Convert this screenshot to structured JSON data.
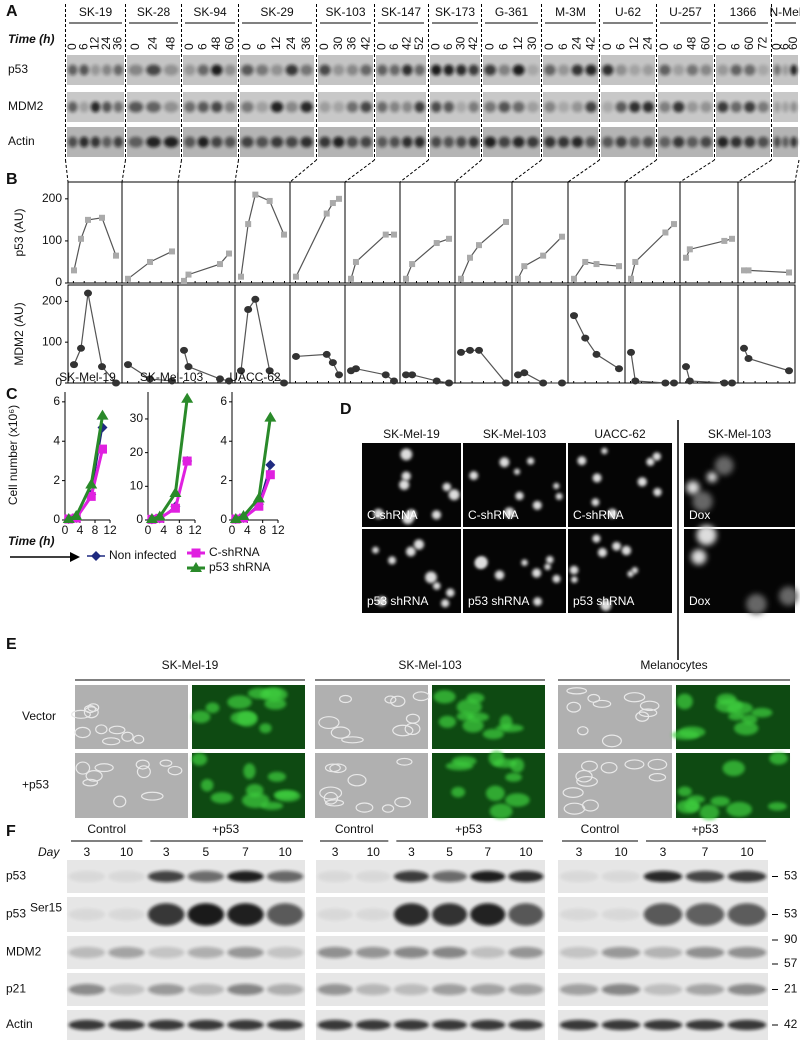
{
  "panel_A": {
    "label": "A",
    "time_label": "Time (h)",
    "rows": [
      "p53",
      "MDM2",
      "Actin"
    ],
    "lines": [
      {
        "name": "SK-19",
        "times": [
          0,
          6,
          12,
          24,
          36
        ]
      },
      {
        "name": "SK-28",
        "times": [
          0,
          24,
          48
        ]
      },
      {
        "name": "SK-94",
        "times": [
          0,
          6,
          48,
          60
        ]
      },
      {
        "name": "SK-29",
        "times": [
          0,
          6,
          12,
          24,
          36
        ]
      },
      {
        "name": "SK-103",
        "times": [
          0,
          30,
          36,
          42
        ]
      },
      {
        "name": "SK-147",
        "times": [
          0,
          6,
          42,
          52
        ]
      },
      {
        "name": "SK-173",
        "times": [
          0,
          6,
          30,
          42
        ]
      },
      {
        "name": "G-361",
        "times": [
          0,
          6,
          12,
          30
        ]
      },
      {
        "name": "M-3M",
        "times": [
          0,
          6,
          24,
          42
        ]
      },
      {
        "name": "U-62",
        "times": [
          0,
          6,
          12,
          24
        ]
      },
      {
        "name": "U-257",
        "times": [
          0,
          6,
          48,
          60
        ]
      },
      {
        "name": "1366",
        "times": [
          0,
          6,
          60,
          72
        ]
      },
      {
        "name": "N-Mel",
        "times": [
          0,
          6,
          60
        ]
      }
    ]
  },
  "panel_B": {
    "label": "B",
    "charts": [
      {
        "type": "line",
        "y_label": "p53 (AU)",
        "ylim": [
          0,
          240
        ],
        "yticks": [
          0,
          100,
          200
        ],
        "color": "#aaaaaa",
        "marker": "square",
        "series": [
          [
            30,
            105,
            150,
            155,
            65
          ],
          [
            10,
            50,
            75
          ],
          [
            5,
            20,
            45,
            70
          ],
          [
            15,
            140,
            210,
            195,
            115
          ],
          [
            15,
            165,
            190,
            200
          ],
          [
            10,
            50,
            115,
            115
          ],
          [
            10,
            45,
            95,
            105
          ],
          [
            10,
            60,
            90,
            145
          ],
          [
            10,
            40,
            65,
            110
          ],
          [
            10,
            50,
            45,
            40
          ],
          [
            10,
            50,
            120,
            140
          ],
          [
            60,
            80,
            100,
            105
          ],
          [
            30,
            30,
            25
          ]
        ]
      },
      {
        "type": "line",
        "y_label": "MDM2 (AU)",
        "ylim": [
          0,
          240
        ],
        "yticks": [
          0,
          100,
          200
        ],
        "color": "#333333",
        "marker": "circle",
        "series": [
          [
            45,
            85,
            220,
            40,
            0
          ],
          [
            45,
            10,
            5
          ],
          [
            80,
            40,
            10,
            5
          ],
          [
            30,
            180,
            205,
            30,
            0
          ],
          [
            65,
            70,
            50,
            20
          ],
          [
            30,
            35,
            20,
            5
          ],
          [
            20,
            20,
            5,
            0
          ],
          [
            75,
            80,
            80,
            0
          ],
          [
            20,
            25,
            0,
            0
          ],
          [
            165,
            110,
            70,
            35
          ],
          [
            75,
            5,
            0,
            0
          ],
          [
            40,
            5,
            0,
            0
          ],
          [
            85,
            60,
            30
          ]
        ]
      }
    ]
  },
  "panel_C": {
    "label": "C",
    "y_label": "Cell number (x10⁶)",
    "x_label": "Time (h)",
    "x": [
      1,
      3,
      7,
      10
    ],
    "xlim": [
      0,
      12
    ],
    "xticks": [
      0,
      4,
      8,
      12
    ],
    "legend": [
      {
        "name": "Non infected",
        "color": "#1f2a80",
        "marker": "diamond"
      },
      {
        "name": "C-shRNA",
        "color": "#e020e0",
        "marker": "square"
      },
      {
        "name": "p53 shRNA",
        "color": "#2a8a2a",
        "marker": "triangle"
      }
    ],
    "charts": [
      {
        "type": "line",
        "title": "SK-Mel-19",
        "ylim": [
          0,
          6.5
        ],
        "yticks": [
          0,
          2,
          4,
          6
        ],
        "values": [
          [
            0.05,
            0.1,
            1.3,
            4.7
          ],
          [
            0.05,
            0.1,
            1.2,
            3.6
          ],
          [
            0.05,
            0.2,
            1.8,
            5.3
          ]
        ]
      },
      {
        "type": "line",
        "title": "SK-Mel-103",
        "ylim": [
          0,
          38
        ],
        "yticks": [
          0,
          10,
          20,
          30
        ],
        "values": [
          [
            0.2,
            0.5,
            4,
            17.5
          ],
          [
            0.2,
            0.5,
            3.5,
            17.5
          ],
          [
            0.3,
            1,
            8,
            36
          ]
        ]
      },
      {
        "type": "line",
        "title": "UACC-62",
        "ylim": [
          0,
          6.5
        ],
        "yticks": [
          0,
          2,
          4,
          6
        ],
        "values": [
          [
            0.05,
            0.1,
            0.8,
            2.8
          ],
          [
            0.05,
            0.1,
            0.7,
            2.3
          ],
          [
            0.05,
            0.2,
            1.1,
            5.2
          ]
        ]
      }
    ]
  },
  "panel_D": {
    "label": "D",
    "titles": [
      "SK-Mel-19",
      "SK-Mel-103",
      "UACC-62",
      "SK-Mel-103"
    ],
    "rows": [
      [
        "C-shRNA",
        "C-shRNA",
        "C-shRNA",
        "Dox"
      ],
      [
        "p53 shRNA",
        "p53 shRNA",
        "p53 shRNA",
        "Dox"
      ]
    ]
  },
  "panel_E": {
    "label": "E",
    "titles": [
      "SK-Mel-19",
      "SK-Mel-103",
      "Melanocytes"
    ],
    "rows": [
      "Vector",
      "+p53"
    ]
  },
  "panel_F": {
    "label": "F",
    "day_label": "Day",
    "groups": [
      {
        "control": "Control",
        "treated": "+p53",
        "days": [
          3,
          10,
          3,
          5,
          7,
          10
        ]
      },
      {
        "control": "Control",
        "treated": "+p53",
        "days": [
          3,
          10,
          3,
          5,
          7,
          10
        ]
      },
      {
        "control": "Control",
        "treated": "+p53",
        "days": [
          3,
          10,
          3,
          7,
          10
        ]
      }
    ],
    "rows": [
      {
        "name": "p53"
      },
      {
        "name": "p53",
        "superscript": "Ser15"
      },
      {
        "name": "MDM2"
      },
      {
        "name": "p21"
      },
      {
        "name": "Actin"
      }
    ],
    "markers": [
      [
        53
      ],
      [
        53
      ],
      [
        90,
        57
      ],
      [
        21
      ],
      [
        42
      ]
    ]
  }
}
